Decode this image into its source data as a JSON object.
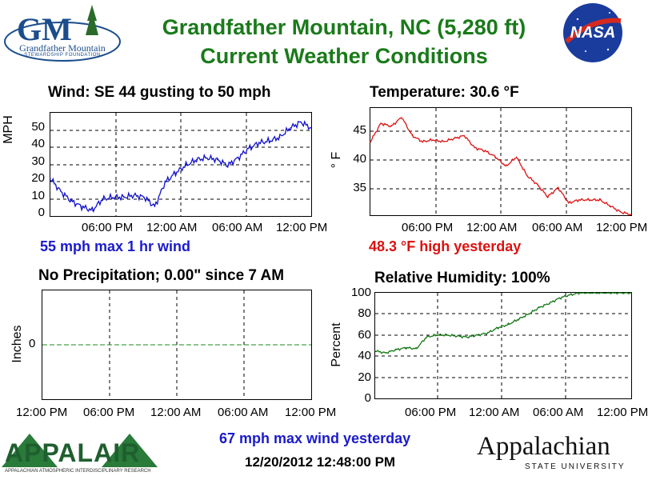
{
  "header": {
    "title_line1": "Grandfather Mountain, NC  (5,280 ft)",
    "title_line2": "Current Weather Conditions",
    "logo_left_text": "Grandfather Mountain",
    "logo_left_sub": "STEWARDSHIP FOUNDATION",
    "logo_right_text": "NASA"
  },
  "footer": {
    "wind_yesterday": "67 mph max wind yesterday",
    "timestamp": "12/20/2012 12:48:00 PM",
    "appalair_text": "APPALAIR",
    "appalair_sub": "APPALACHIAN ATMOSPHERIC INTERDISCIPLINARY RESEARCH",
    "appstate_text": "Appalachian",
    "appstate_sub": "STATE UNIVERSITY"
  },
  "wind": {
    "title": "Wind:   SE  44 gusting to 50 mph",
    "note": "55 mph max 1 hr wind",
    "ylabel": "MPH",
    "xticks": [
      "06:00 PM",
      "12:00 AM",
      "06:00 AM",
      "12:00 PM"
    ],
    "yticks": [
      "50",
      "40",
      "30",
      "20",
      "10",
      "0"
    ],
    "color": "#1010cc"
  },
  "temperature": {
    "title": "Temperature:  30.6 °F",
    "note": "48.3 °F high yesterday",
    "ylabel": "° F",
    "xticks": [
      "06:00 PM",
      "12:00 AM",
      "06:00 AM",
      "12:00 PM"
    ],
    "yticks": [
      "45",
      "40",
      "35"
    ],
    "color": "#dd1111"
  },
  "precip": {
    "title": "No Precipitation; 0.00\" since 7 AM",
    "ylabel": "Inches",
    "xticks": [
      "12:00 PM",
      "06:00 PM",
      "12:00 AM",
      "06:00 AM",
      "12:00 PM"
    ],
    "yticks": [
      "0"
    ],
    "color": "#1a8a1a"
  },
  "humidity": {
    "title": "Relative Humidity:     100%",
    "ylabel": "Percent",
    "xticks": [
      "06:00 PM",
      "12:00 AM",
      "06:00 AM",
      "12:00 PM"
    ],
    "yticks": [
      "100",
      "80",
      "60",
      "40",
      "20",
      "0"
    ],
    "color": "#117711"
  },
  "chart_data": [
    {
      "type": "line",
      "name": "wind",
      "ylabel": "MPH",
      "ylim": [
        0,
        55
      ],
      "x_hours": [
        0,
        1,
        2,
        3,
        4,
        5,
        6,
        7,
        8,
        9,
        10,
        11,
        12,
        13,
        14,
        15,
        16,
        17,
        18,
        19,
        20,
        21,
        22,
        23,
        24,
        25
      ],
      "values": [
        20,
        13,
        8,
        5,
        3,
        9,
        10,
        10,
        11,
        10,
        5,
        18,
        23,
        27,
        30,
        31,
        30,
        27,
        31,
        36,
        39,
        40,
        42,
        47,
        50,
        47
      ],
      "xticks": [
        "06:00 PM",
        "12:00 AM",
        "06:00 AM",
        "12:00 PM"
      ]
    },
    {
      "type": "line",
      "name": "temperature",
      "ylabel": "° F",
      "ylim": [
        30.5,
        48
      ],
      "x_hours": [
        0,
        1,
        2,
        3,
        4,
        5,
        6,
        7,
        8,
        9,
        10,
        11,
        12,
        13,
        14,
        15,
        16,
        17,
        18,
        19,
        20,
        21,
        22,
        23,
        24,
        25
      ],
      "values": [
        42.5,
        45.5,
        45,
        46.5,
        43.5,
        42.5,
        42.8,
        42.5,
        43,
        43.5,
        41.5,
        41,
        40,
        38.5,
        40,
        37,
        35.5,
        33.5,
        35,
        32.5,
        33,
        33,
        33,
        32,
        31,
        30.6
      ],
      "xticks": [
        "06:00 PM",
        "12:00 AM",
        "06:00 AM",
        "12:00 PM"
      ]
    },
    {
      "type": "line",
      "name": "precipitation",
      "ylabel": "Inches",
      "values": [
        0,
        0
      ],
      "xticks": [
        "12:00 PM",
        "06:00 PM",
        "12:00 AM",
        "06:00 AM",
        "12:00 PM"
      ]
    },
    {
      "type": "line",
      "name": "humidity",
      "ylabel": "Percent",
      "ylim": [
        0,
        100
      ],
      "x_hours": [
        0,
        1,
        2,
        3,
        4,
        5,
        6,
        7,
        8,
        9,
        10,
        11,
        12,
        13,
        14,
        15,
        16,
        17,
        18,
        19,
        20,
        21,
        22,
        23,
        24,
        25
      ],
      "values": [
        45,
        43,
        46,
        48,
        47,
        58,
        60,
        60,
        59,
        58,
        60,
        62,
        67,
        70,
        75,
        80,
        86,
        90,
        95,
        98,
        100,
        100,
        100,
        100,
        100,
        100
      ],
      "xticks": [
        "06:00 PM",
        "12:00 AM",
        "06:00 AM",
        "12:00 PM"
      ]
    }
  ]
}
